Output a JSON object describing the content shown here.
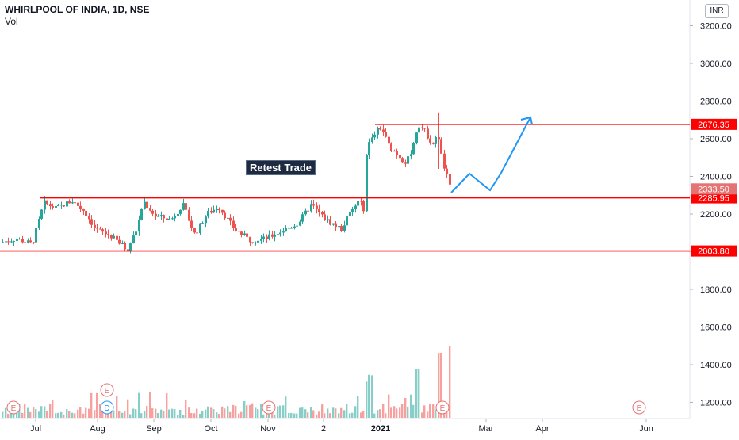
{
  "header": {
    "title": "WHIRLPOOL OF INDIA, 1D, NSE",
    "volume_label": "Vol"
  },
  "currency_button": "INR",
  "annotation": "Retest Trade",
  "colors": {
    "up": "#26a69a",
    "down": "#ef5350",
    "line": "#ff0000",
    "projection": "#2196f3",
    "event": "#e57373",
    "dividend": "#2196f3"
  },
  "price_axis": {
    "ticks": [
      "3200.00",
      "3000.00",
      "2800.00",
      "2600.00",
      "2400.00",
      "2200.00",
      "2000.00",
      "1800.00",
      "1600.00",
      "1400.00",
      "1200.00"
    ]
  },
  "time_axis": {
    "labels": [
      "Jul",
      "Aug",
      "Sep",
      "Oct",
      "Nov",
      "2",
      "2021",
      "Mar",
      "Apr",
      "Jun"
    ]
  },
  "levels": [
    {
      "label": "2676.35",
      "value": 2676.35
    },
    {
      "label": "2285.95",
      "value": 2285.95
    },
    {
      "label": "2003.80",
      "value": 2003.8
    }
  ],
  "last_price": {
    "label": "2333.50",
    "value": 2333.5
  },
  "event_markers": [
    {
      "letter": "E",
      "type": "earnings",
      "month": "Jun"
    },
    {
      "letter": "D",
      "type": "dividend",
      "month": "Aug"
    },
    {
      "letter": "E",
      "type": "earnings",
      "month": "Aug"
    },
    {
      "letter": "E",
      "type": "earnings",
      "month": "Nov"
    },
    {
      "letter": "E",
      "type": "earnings",
      "month": "Feb"
    },
    {
      "letter": "E",
      "type": "earnings",
      "month": "May"
    }
  ]
}
